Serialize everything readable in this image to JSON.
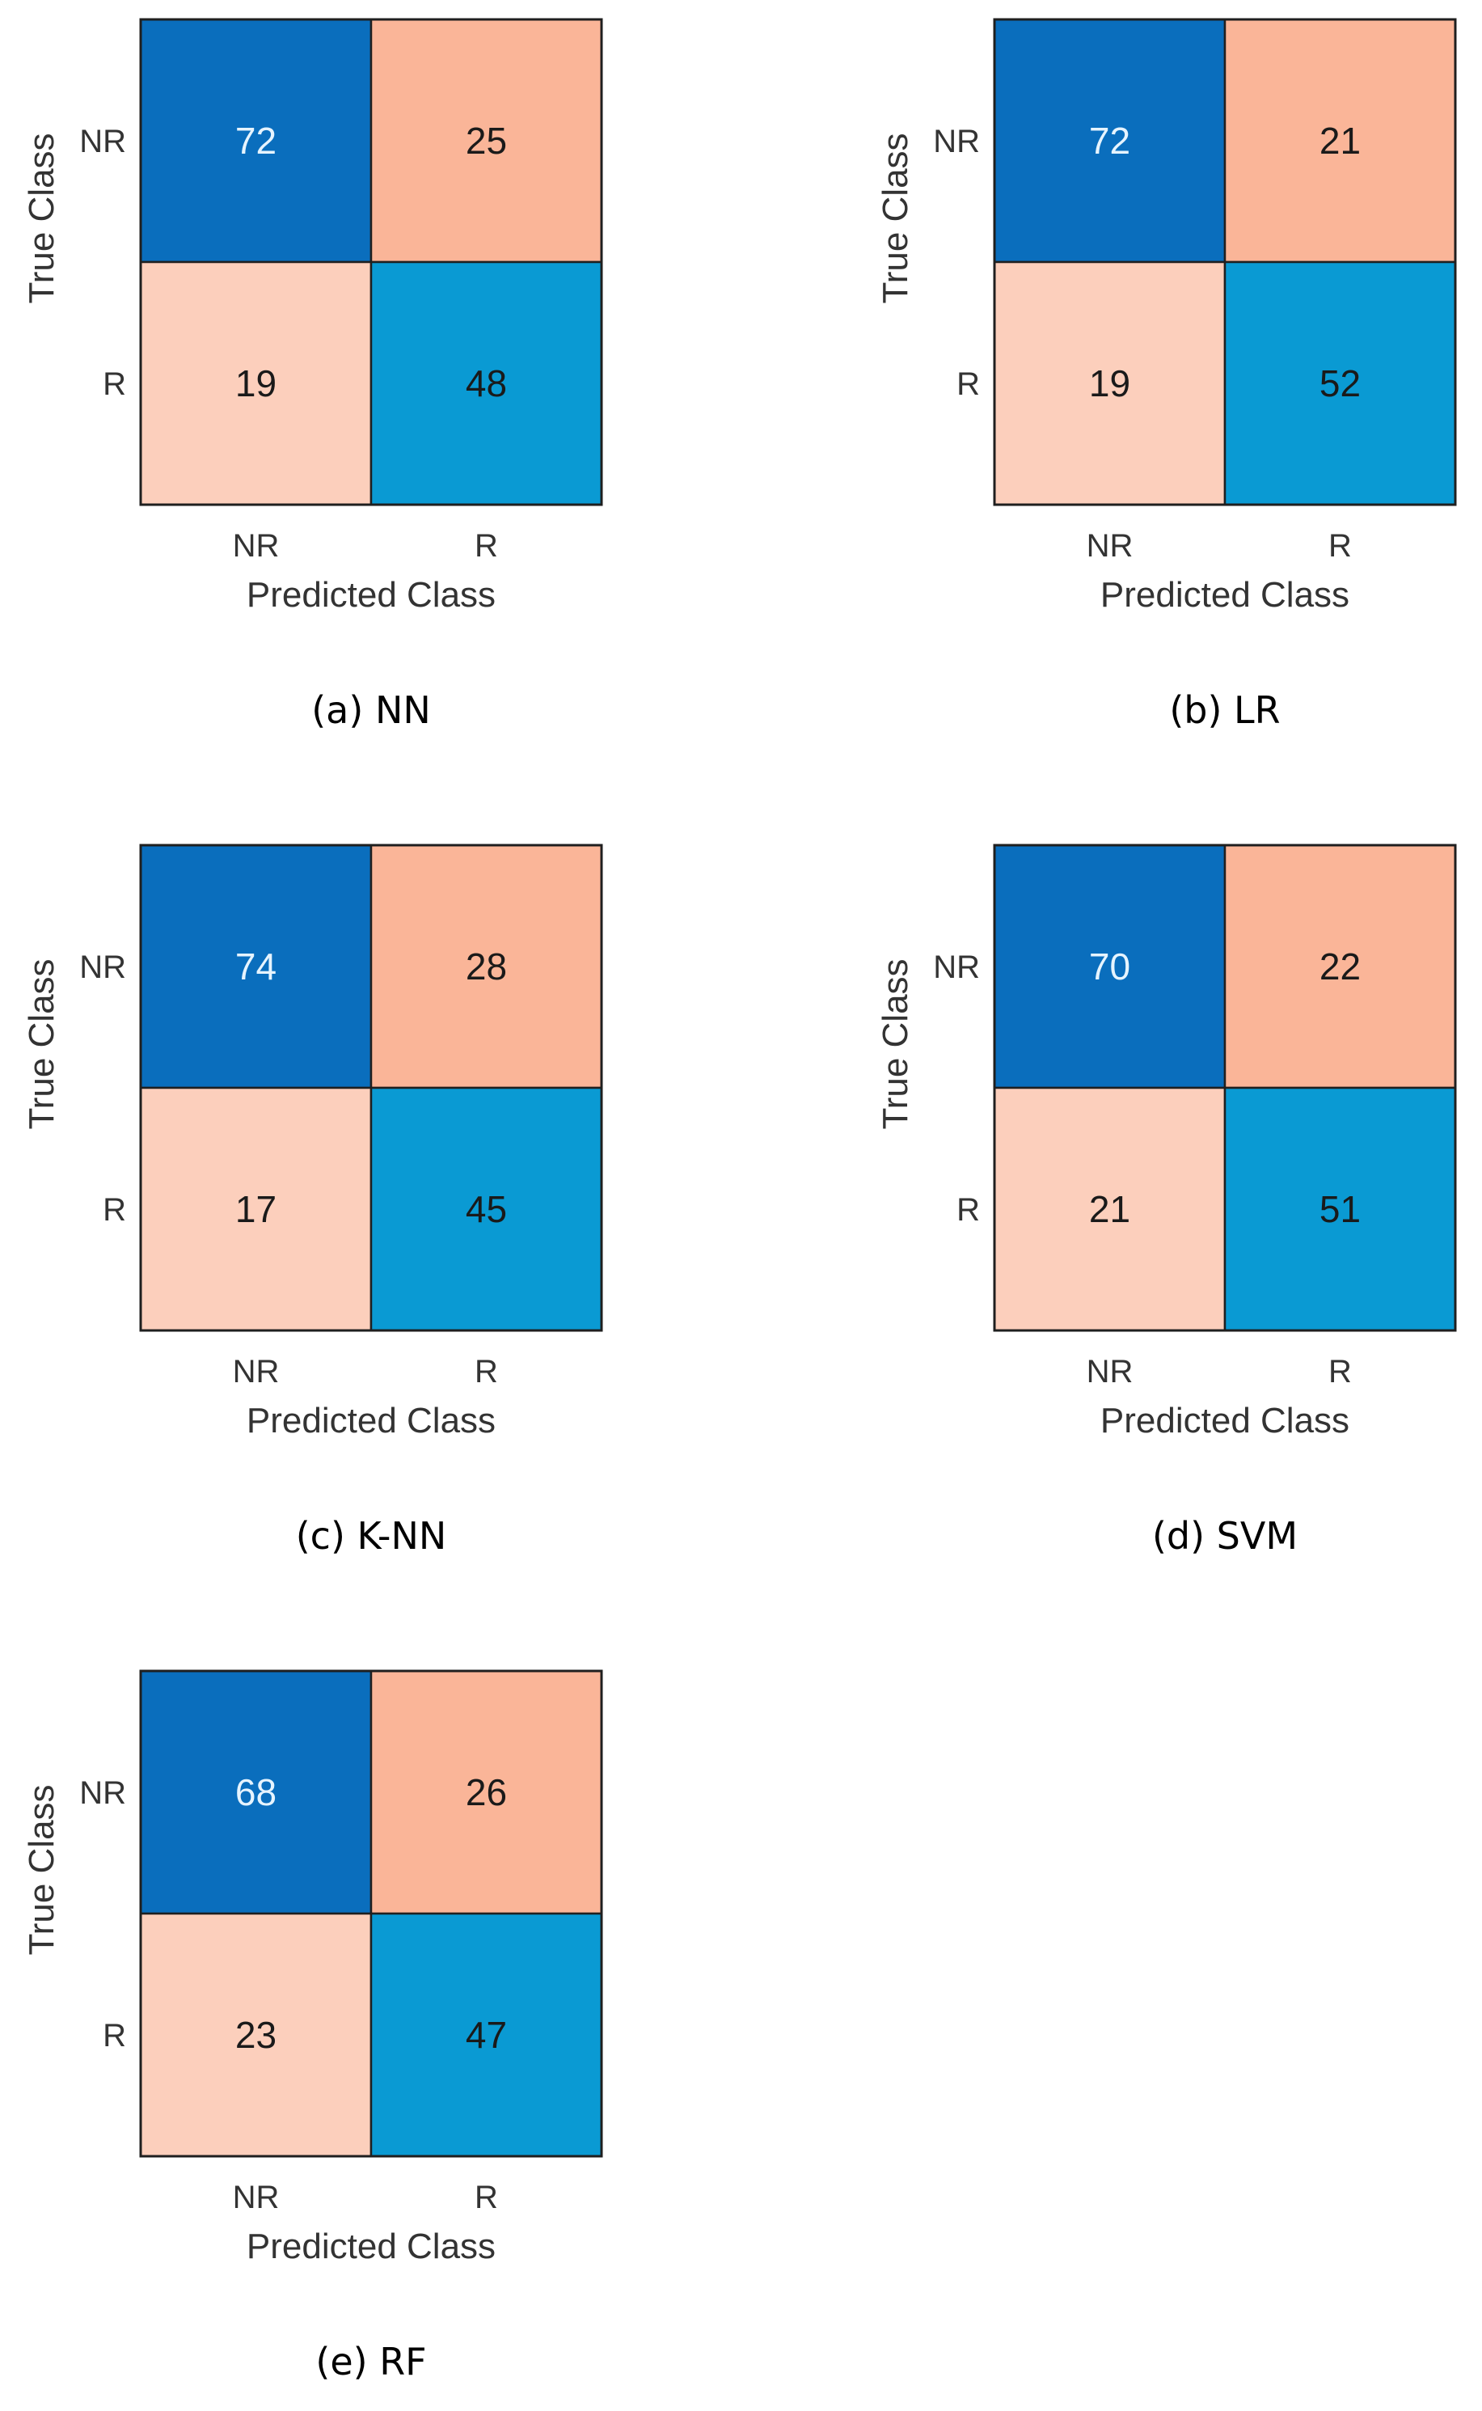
{
  "chart_data": [
    {
      "type": "heatmap",
      "caption": "(a)  NN",
      "xlabel": "Predicted Class",
      "ylabel": "True Class",
      "x_categories": [
        "NR",
        "R"
      ],
      "y_categories": [
        "NR",
        "R"
      ],
      "matrix": [
        [
          72,
          25
        ],
        [
          19,
          48
        ]
      ]
    },
    {
      "type": "heatmap",
      "caption": "(b)  LR",
      "xlabel": "Predicted Class",
      "ylabel": "True Class",
      "x_categories": [
        "NR",
        "R"
      ],
      "y_categories": [
        "NR",
        "R"
      ],
      "matrix": [
        [
          72,
          21
        ],
        [
          19,
          52
        ]
      ]
    },
    {
      "type": "heatmap",
      "caption": "(c)  K-NN",
      "xlabel": "Predicted Class",
      "ylabel": "True Class",
      "x_categories": [
        "NR",
        "R"
      ],
      "y_categories": [
        "NR",
        "R"
      ],
      "matrix": [
        [
          74,
          28
        ],
        [
          17,
          45
        ]
      ]
    },
    {
      "type": "heatmap",
      "caption": "(d)  SVM",
      "xlabel": "Predicted Class",
      "ylabel": "True Class",
      "x_categories": [
        "NR",
        "R"
      ],
      "y_categories": [
        "NR",
        "R"
      ],
      "matrix": [
        [
          70,
          22
        ],
        [
          21,
          51
        ]
      ]
    },
    {
      "type": "heatmap",
      "caption": "(e)  RF",
      "xlabel": "Predicted Class",
      "ylabel": "True Class",
      "x_categories": [
        "NR",
        "R"
      ],
      "y_categories": [
        "NR",
        "R"
      ],
      "matrix": [
        [
          68,
          26
        ],
        [
          23,
          47
        ]
      ]
    }
  ],
  "colors": {
    "diag_dark": "#0a6ebd",
    "diag_light": "#0aa8da",
    "offdiag_dark": "#fab598",
    "offdiag_light": "#fde4d9",
    "text_on_dark": "#e6f4ff",
    "text_on_light": "#1a1a1a"
  }
}
